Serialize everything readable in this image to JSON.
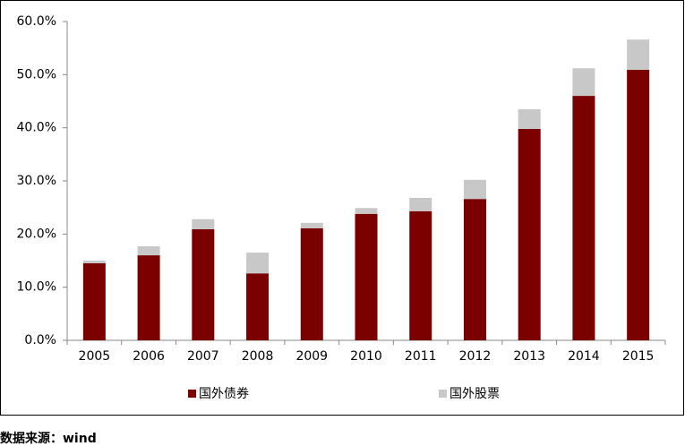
{
  "chart_data": {
    "type": "stacked-bar",
    "categories": [
      "2005",
      "2006",
      "2007",
      "2008",
      "2009",
      "2010",
      "2011",
      "2012",
      "2013",
      "2014",
      "2015"
    ],
    "series": [
      {
        "name": "国外债券",
        "color": "#7b0000",
        "values": [
          14.5,
          16.0,
          20.9,
          12.6,
          21.1,
          23.8,
          24.3,
          26.6,
          39.8,
          46.0,
          50.9
        ]
      },
      {
        "name": "国外股票",
        "color": "#c8c8c8",
        "values": [
          0.5,
          1.7,
          1.9,
          3.9,
          1.0,
          1.1,
          2.5,
          3.6,
          3.7,
          5.2,
          5.7
        ]
      }
    ],
    "ylim": [
      0,
      60
    ],
    "yticks": [
      {
        "value": 0,
        "label": "0.0%"
      },
      {
        "value": 10,
        "label": "10.0%"
      },
      {
        "value": 20,
        "label": "20.0%"
      },
      {
        "value": 30,
        "label": "30.0%"
      },
      {
        "value": 40,
        "label": "40.0%"
      },
      {
        "value": 50,
        "label": "50.0%"
      },
      {
        "value": 60,
        "label": "60.0%"
      }
    ],
    "grid": false,
    "legend": "bottom",
    "source": "数据来源：wind"
  }
}
